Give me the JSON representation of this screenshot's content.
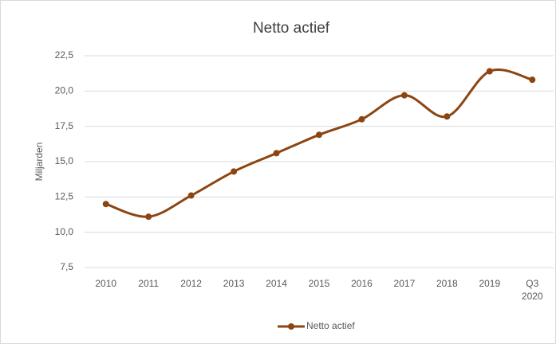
{
  "chart_data": {
    "type": "line",
    "title": "Netto actief",
    "y_label": "Miljarden",
    "categories": [
      "2010",
      "2011",
      "2012",
      "2013",
      "2014",
      "2015",
      "2016",
      "2017",
      "2018",
      "2019",
      "Q3 2020"
    ],
    "series": [
      {
        "name": "Netto actief",
        "color": "#8c4510",
        "values": [
          12.0,
          11.1,
          12.6,
          14.3,
          15.6,
          16.9,
          18.0,
          19.7,
          18.2,
          21.4,
          20.8
        ]
      }
    ],
    "ylim": [
      7.5,
      22.5
    ],
    "yticks": [
      {
        "value": 7.5,
        "label": "7,5"
      },
      {
        "value": 10,
        "label": "10,0"
      },
      {
        "value": 12.5,
        "label": "12,5"
      },
      {
        "value": 15,
        "label": "15,0"
      },
      {
        "value": 17.5,
        "label": "17,5"
      },
      {
        "value": 20,
        "label": "20,0"
      },
      {
        "value": 22.5,
        "label": "22,5"
      }
    ],
    "grid": true,
    "smooth": true,
    "legend": "bottom"
  }
}
